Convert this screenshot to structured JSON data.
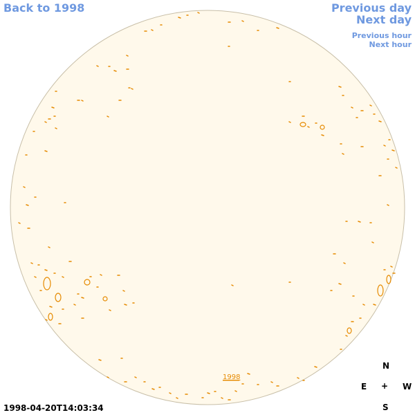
{
  "nav": {
    "back_label": "Back to 1998",
    "prev_day_label": "Previous day",
    "next_day_label": "Next day",
    "prev_hour_label": "Previous hour",
    "next_hour_label": "Next hour"
  },
  "timestamp": "1998-04-20T14:03:34",
  "year_marker": "1998",
  "compass": {
    "north": "N",
    "south": "S",
    "east": "E",
    "west": "W",
    "center": "+"
  },
  "colors": {
    "disk_fill": "#fff9eb",
    "disk_edge": "#c8bfa8",
    "contour": "#e68a00",
    "nav_text": "#6f99e0"
  }
}
